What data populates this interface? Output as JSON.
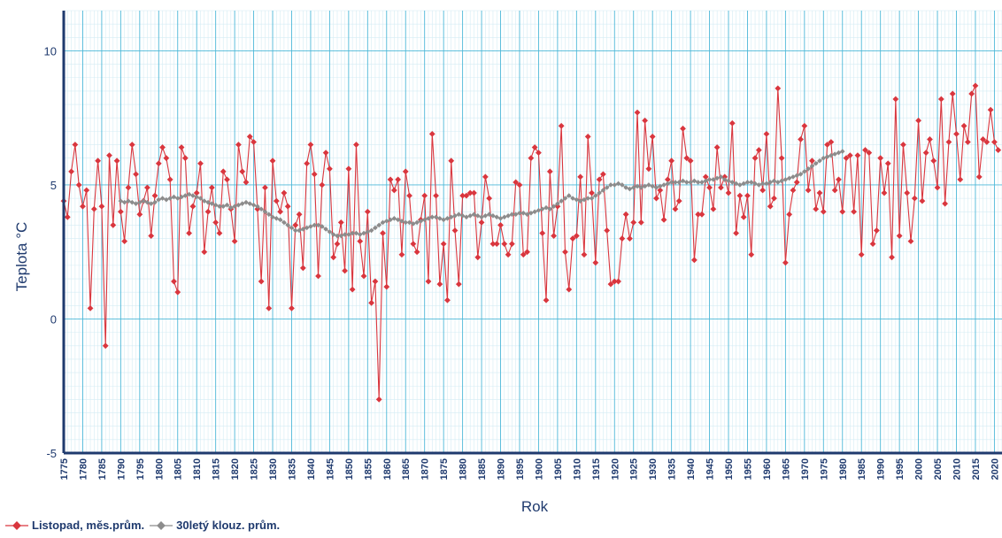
{
  "chart_data": {
    "type": "line",
    "xlabel": "Rok",
    "ylabel": "Teplota  °C",
    "xlim": [
      1775,
      2022
    ],
    "ylim": [
      -5,
      11.5
    ],
    "yticks": [
      -5,
      0,
      5,
      10
    ],
    "xticks": [
      1775,
      1780,
      1785,
      1790,
      1795,
      1800,
      1805,
      1810,
      1815,
      1820,
      1825,
      1830,
      1835,
      1840,
      1845,
      1850,
      1855,
      1860,
      1865,
      1870,
      1875,
      1880,
      1885,
      1890,
      1895,
      1900,
      1905,
      1910,
      1915,
      1920,
      1925,
      1930,
      1935,
      1940,
      1945,
      1950,
      1955,
      1960,
      1965,
      1970,
      1975,
      1980,
      1985,
      1990,
      1995,
      2000,
      2005,
      2010,
      2015,
      2020
    ],
    "grid": true,
    "legend_position": "bottom-left",
    "colors": {
      "monthly": "#d9363e",
      "moving": "#8c8c8c",
      "grid_major": "#4db8d8",
      "grid_minor": "#d4ecf4",
      "axis": "#1f3a6e"
    },
    "series": [
      {
        "name": "Listopad, měs.prům.",
        "x_start": 1775,
        "values": [
          4.4,
          3.8,
          5.5,
          6.5,
          5.0,
          4.2,
          4.8,
          0.4,
          4.1,
          5.9,
          4.2,
          -1.0,
          6.1,
          3.5,
          5.9,
          4.0,
          2.9,
          4.9,
          6.5,
          5.4,
          3.9,
          4.4,
          4.9,
          3.1,
          4.6,
          5.8,
          6.4,
          6.0,
          5.2,
          1.4,
          1.0,
          6.4,
          6.0,
          3.2,
          4.2,
          4.7,
          5.8,
          2.5,
          4.0,
          4.9,
          3.6,
          3.2,
          5.5,
          5.2,
          4.1,
          2.9,
          6.5,
          5.5,
          5.1,
          6.8,
          6.6,
          4.1,
          1.4,
          4.9,
          0.4,
          5.9,
          4.4,
          4.0,
          4.7,
          4.2,
          0.4,
          3.5,
          3.9,
          1.9,
          5.8,
          6.5,
          5.4,
          1.6,
          5.0,
          6.2,
          5.6,
          2.3,
          2.8,
          3.6,
          1.8,
          5.6,
          1.1,
          6.5,
          2.9,
          1.6,
          4.0,
          0.6,
          1.4,
          -3.0,
          3.2,
          1.2,
          5.2,
          4.8,
          5.2,
          2.4,
          5.5,
          4.6,
          2.8,
          2.5,
          3.7,
          4.6,
          1.4,
          6.9,
          4.6,
          1.3,
          2.8,
          0.7,
          5.9,
          3.3,
          1.3,
          4.6,
          4.6,
          4.7,
          4.7,
          2.3,
          3.6,
          5.3,
          4.5,
          2.8,
          2.8,
          3.5,
          2.8,
          2.4,
          2.8,
          5.1,
          5.0,
          2.4,
          2.5,
          6.0,
          6.4,
          6.2,
          3.2,
          0.7,
          5.5,
          3.1,
          4.2,
          7.2,
          2.5,
          1.1,
          3.0,
          3.1,
          5.3,
          2.4,
          6.8,
          4.7,
          2.1,
          5.2,
          5.4,
          3.3,
          1.3,
          1.4,
          1.4,
          3.0,
          3.9,
          3.0,
          3.6,
          7.7,
          3.6,
          7.4,
          5.6,
          6.8,
          4.5,
          4.8,
          3.7,
          5.2,
          5.9,
          4.1,
          4.4,
          7.1,
          6.0,
          5.9,
          2.2,
          3.9,
          3.9,
          5.3,
          4.9,
          4.1,
          6.4,
          4.9,
          5.3,
          4.7,
          7.3,
          3.2,
          4.6,
          3.8,
          4.6,
          2.4,
          6.0,
          6.3,
          4.8,
          6.9,
          4.2,
          4.5,
          8.6,
          6.0,
          2.1,
          3.9,
          4.8,
          5.1,
          6.7,
          7.2,
          4.8,
          5.9,
          4.1,
          4.7,
          4.0,
          6.5,
          6.6,
          4.8,
          5.2,
          4.0,
          6.0,
          6.1,
          4.0,
          6.1,
          2.4,
          6.3,
          6.2,
          2.8,
          3.3,
          6.0,
          4.7,
          5.8,
          2.3,
          8.2,
          3.1,
          6.5,
          4.7,
          2.9,
          4.5,
          7.4,
          4.4,
          6.2,
          6.7,
          5.9,
          4.9,
          8.2,
          4.3,
          6.6,
          8.4,
          6.9,
          5.2,
          7.2,
          6.6,
          8.4,
          8.7,
          5.3,
          6.7,
          6.6,
          7.8,
          6.6,
          6.3
        ]
      },
      {
        "name": "30letý klouz. prům.",
        "x_start": 1790,
        "values": [
          4.4,
          4.35,
          4.4,
          4.35,
          4.3,
          4.35,
          4.4,
          4.35,
          4.3,
          4.35,
          4.45,
          4.5,
          4.45,
          4.5,
          4.55,
          4.5,
          4.55,
          4.6,
          4.65,
          4.6,
          4.55,
          4.5,
          4.4,
          4.35,
          4.3,
          4.25,
          4.2,
          4.2,
          4.25,
          4.15,
          4.2,
          4.25,
          4.3,
          4.35,
          4.3,
          4.25,
          4.2,
          4.1,
          4.0,
          3.9,
          3.8,
          3.75,
          3.7,
          3.6,
          3.5,
          3.4,
          3.3,
          3.3,
          3.35,
          3.4,
          3.45,
          3.5,
          3.5,
          3.45,
          3.35,
          3.25,
          3.15,
          3.1,
          3.1,
          3.15,
          3.15,
          3.2,
          3.2,
          3.15,
          3.2,
          3.25,
          3.3,
          3.4,
          3.5,
          3.6,
          3.65,
          3.7,
          3.75,
          3.7,
          3.65,
          3.6,
          3.6,
          3.55,
          3.6,
          3.65,
          3.7,
          3.75,
          3.8,
          3.8,
          3.75,
          3.7,
          3.75,
          3.8,
          3.85,
          3.9,
          3.85,
          3.8,
          3.85,
          3.9,
          3.85,
          3.8,
          3.85,
          3.9,
          3.85,
          3.8,
          3.75,
          3.8,
          3.85,
          3.9,
          3.9,
          3.95,
          3.95,
          3.9,
          3.95,
          4.0,
          4.05,
          4.1,
          4.15,
          4.1,
          4.2,
          4.3,
          4.4,
          4.5,
          4.6,
          4.5,
          4.45,
          4.4,
          4.45,
          4.5,
          4.5,
          4.6,
          4.7,
          4.8,
          4.9,
          5.0,
          5.0,
          5.05,
          5.0,
          4.9,
          4.85,
          4.9,
          4.95,
          4.9,
          4.95,
          5.0,
          4.95,
          4.9,
          4.95,
          5.0,
          5.05,
          5.1,
          5.1,
          5.1,
          5.15,
          5.1,
          5.1,
          5.15,
          5.1,
          5.1,
          5.15,
          5.2,
          5.2,
          5.25,
          5.3,
          5.2,
          5.15,
          5.1,
          5.05,
          5.0,
          5.05,
          5.1,
          5.1,
          5.05,
          5.0,
          5.05,
          5.05,
          5.1,
          5.15,
          5.1,
          5.15,
          5.2,
          5.25,
          5.3,
          5.35,
          5.4,
          5.5,
          5.6,
          5.7,
          5.8,
          5.9,
          6.0,
          6.05,
          6.1,
          6.15,
          6.2,
          6.25
        ]
      }
    ]
  },
  "legend": {
    "items": [
      {
        "label": "Listopad, měs.prům."
      },
      {
        "label": "30letý klouz. prům."
      }
    ]
  }
}
